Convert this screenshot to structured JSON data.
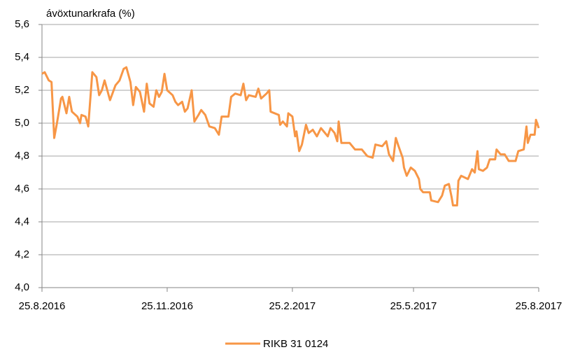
{
  "chart_data": {
    "type": "line",
    "ylabel": "ávöxtunarkrafa (%)",
    "x": [
      "25.8.2016",
      "27.8.2016",
      "30.8.2016",
      "1.9.2016",
      "3.9.2016",
      "5.9.2016",
      "8.9.2016",
      "9.9.2016",
      "12.9.2016",
      "14.9.2016",
      "16.9.2016",
      "20.9.2016",
      "22.9.2016",
      "23.9.2016",
      "26.9.2016",
      "28.9.2016",
      "1.10.2016",
      "4.10.2016",
      "6.10.2016",
      "8.10.2016",
      "10.10.2016",
      "14.10.2016",
      "18.10.2016",
      "21.10.2016",
      "24.10.2016",
      "26.10.2016",
      "29.10.2016",
      "31.10.2016",
      "2.11.2016",
      "5.11.2016",
      "8.11.2016",
      "10.11.2016",
      "12.11.2016",
      "15.11.2016",
      "17.11.2016",
      "19.11.2016",
      "21.11.2016",
      "23.11.2016",
      "25.11.2016",
      "29.11.2016",
      "1.12.2016",
      "3.12.2016",
      "6.12.2016",
      "8.12.2016",
      "10.12.2016",
      "13.12.2016",
      "15.12.2016",
      "18.12.2016",
      "20.12.2016",
      "23.12.2016",
      "26.12.2016",
      "30.12.2016",
      "2.1.2017",
      "4.1.2017",
      "9.1.2017",
      "11.1.2017",
      "14.1.2017",
      "18.1.2017",
      "20.1.2017",
      "22.1.2017",
      "24.1.2017",
      "29.1.2017",
      "31.1.2017",
      "2.2.2017",
      "6.2.2017",
      "8.2.2017",
      "9.2.2017",
      "15.2.2017",
      "16.2.2017",
      "18.2.2017",
      "21.2.2017",
      "22.2.2017",
      "25.2.2017",
      "27.2.2017",
      "28.2.2017",
      "2.3.2017",
      "4.3.2017",
      "7.3.2017",
      "9.3.2017",
      "12.3.2017",
      "15.3.2017",
      "18.3.2017",
      "20.3.2017",
      "23.3.2017",
      "25.3.2017",
      "28.3.2017",
      "30.3.2017",
      "31.3.2017",
      "2.4.2017",
      "8.4.2017",
      "12.4.2017",
      "17.4.2017",
      "21.4.2017",
      "25.4.2017",
      "27.4.2017",
      "2.5.2017",
      "5.5.2017",
      "7.5.2017",
      "10.5.2017",
      "12.5.2017",
      "14.5.2017",
      "17.5.2017",
      "18.5.2017",
      "20.5.2017",
      "23.5.2017",
      "26.5.2017",
      "29.5.2017",
      "30.5.2017",
      "1.6.2017",
      "6.6.2017",
      "7.6.2017",
      "12.6.2017",
      "15.6.2017",
      "17.6.2017",
      "20.6.2017",
      "22.6.2017",
      "23.6.2017",
      "26.6.2017",
      "27.6.2017",
      "29.6.2017",
      "4.7.2017",
      "7.7.2017",
      "9.7.2017",
      "11.7.2017",
      "12.7.2017",
      "15.7.2017",
      "18.7.2017",
      "20.7.2017",
      "24.7.2017",
      "25.7.2017",
      "28.7.2017",
      "31.7.2017",
      "3.8.2017",
      "8.8.2017",
      "10.8.2017",
      "14.8.2017",
      "16.8.2017",
      "17.8.2017",
      "19.8.2017",
      "22.8.2017",
      "23.8.2017",
      "25.8.2017"
    ],
    "series": [
      {
        "name": "RIKB 31 0124",
        "color": "#f79646",
        "values": [
          5.3,
          5.31,
          5.26,
          5.25,
          4.91,
          5.0,
          5.15,
          5.16,
          5.06,
          5.16,
          5.07,
          5.04,
          5.0,
          5.05,
          5.04,
          4.98,
          5.31,
          5.28,
          5.17,
          5.2,
          5.26,
          5.14,
          5.23,
          5.26,
          5.33,
          5.34,
          5.25,
          5.11,
          5.22,
          5.19,
          5.07,
          5.24,
          5.12,
          5.1,
          5.2,
          5.16,
          5.19,
          5.3,
          5.2,
          5.17,
          5.13,
          5.11,
          5.13,
          5.07,
          5.09,
          5.2,
          5.01,
          5.05,
          5.08,
          5.05,
          4.98,
          4.97,
          4.93,
          5.04,
          5.04,
          5.16,
          5.18,
          5.17,
          5.24,
          5.14,
          5.17,
          5.16,
          5.21,
          5.15,
          5.18,
          5.2,
          5.07,
          5.05,
          4.99,
          5.01,
          4.98,
          5.06,
          5.04,
          4.92,
          4.95,
          4.83,
          4.87,
          4.99,
          4.94,
          4.96,
          4.92,
          4.97,
          4.95,
          4.92,
          4.97,
          4.94,
          4.89,
          5.01,
          4.88,
          4.88,
          4.84,
          4.84,
          4.8,
          4.79,
          4.87,
          4.86,
          4.89,
          4.81,
          4.77,
          4.91,
          4.86,
          4.79,
          4.73,
          4.68,
          4.73,
          4.71,
          4.66,
          4.6,
          4.58,
          4.58,
          4.53,
          4.52,
          4.56,
          4.62,
          4.63,
          4.55,
          4.5,
          4.5,
          4.65,
          4.68,
          4.66,
          4.72,
          4.7,
          4.83,
          4.72,
          4.71,
          4.73,
          4.78,
          4.78,
          4.84,
          4.81,
          4.81,
          4.77,
          4.77,
          4.83,
          4.84,
          4.98,
          4.88,
          4.93,
          4.93,
          5.02,
          4.97
        ]
      }
    ],
    "xlim": [
      "25.8.2016",
      "25.8.2017"
    ],
    "xticks": [
      "25.8.2016",
      "25.11.2016",
      "25.2.2017",
      "25.5.2017",
      "25.8.2017"
    ],
    "ylim": [
      4.0,
      5.6
    ],
    "yticks": [
      {
        "value": 4.0,
        "label": "4,0"
      },
      {
        "value": 4.2,
        "label": "4,2"
      },
      {
        "value": 4.4,
        "label": "4,4"
      },
      {
        "value": 4.6,
        "label": "4,6"
      },
      {
        "value": 4.8,
        "label": "4,8"
      },
      {
        "value": 5.0,
        "label": "5,0"
      },
      {
        "value": 5.2,
        "label": "5,2"
      },
      {
        "value": 5.4,
        "label": "5,4"
      },
      {
        "value": 5.6,
        "label": "5,6"
      }
    ],
    "grid": true,
    "legend": "bottom"
  }
}
